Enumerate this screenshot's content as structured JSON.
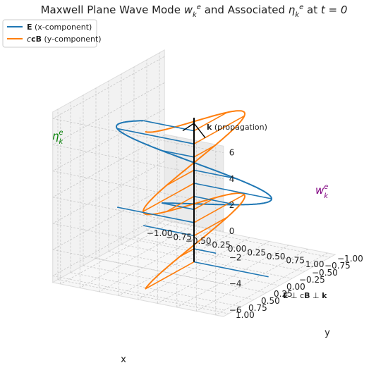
{
  "chart_data": {
    "type": "line",
    "title": "Maxwell Plane Wave Mode w_k^e and Associated η_k^e at t = 0",
    "title_parts": {
      "prefix": "Maxwell Plane Wave Mode ",
      "w": "w",
      "mid": " and Associated ",
      "eta": "η",
      "sub": "k",
      "sup": "e",
      "at": " at ",
      "t_eq": "t = 0"
    },
    "legend": {
      "placement": "top-left",
      "entries": [
        {
          "bold": "E",
          "rest": " (x-component)",
          "color": "#1f77b4"
        },
        {
          "bold": "cB",
          "rest": " (y-component)",
          "color": "#ff7f0e"
        }
      ]
    },
    "axes": {
      "x": {
        "label": "x",
        "range": [
          -1.1,
          1.1
        ],
        "ticks": [
          "−1.00",
          "−0.75",
          "−0.50",
          "−0.25",
          "0.00",
          "0.25",
          "0.50",
          "0.75",
          "1.00"
        ],
        "tick_values": [
          -1,
          -0.75,
          -0.5,
          -0.25,
          0,
          0.25,
          0.5,
          0.75,
          1
        ]
      },
      "y": {
        "label": "y",
        "range": [
          -1.1,
          1.1
        ],
        "ticks": [
          "−1.00",
          "−0.75",
          "−0.50",
          "−0.25",
          "0.00",
          "0.25",
          "0.50",
          "0.75",
          "1.00"
        ],
        "tick_values": [
          -1,
          -0.75,
          -0.5,
          -0.25,
          0,
          0.25,
          0.5,
          0.75,
          1
        ]
      },
      "z": {
        "label": "",
        "range": [
          -6.5,
          6.5
        ],
        "ticks": [
          "−6",
          "−4",
          "−2",
          "0",
          "2",
          "4",
          "6"
        ],
        "tick_values": [
          -6,
          -4,
          -2,
          0,
          2,
          4,
          6
        ]
      }
    },
    "grid": true,
    "series": [
      {
        "name": "E (x-component)",
        "color": "#1f77b4",
        "component": "x",
        "amplitude": 1.0,
        "z_range": [
          -2,
          4
        ],
        "function": "x = cos(z)"
      },
      {
        "name": "cB (y-component)",
        "color": "#ff7f0e",
        "component": "y",
        "amplitude": 1.0,
        "z_range": [
          -6,
          6
        ],
        "function": "y = cos(z)"
      }
    ],
    "field_samples_z": [
      -6,
      -5,
      -4,
      -3,
      -2,
      -1,
      0,
      1,
      2,
      3,
      4
    ],
    "propagation_axis": {
      "z_range": [
        -6,
        5
      ],
      "label_bold": "k",
      "label_rest": " (propagation)"
    },
    "annotations": {
      "eta": {
        "base": "η",
        "sub": "k",
        "sup": "e",
        "color": "#008000"
      },
      "w": {
        "base": "w",
        "sub": "k",
        "sup": "e",
        "color": "#800080"
      },
      "orthogonality": {
        "E": "E",
        "perp1": " ⊥ c",
        "B": "B",
        "perp2": " ⊥ ",
        "k": "k"
      }
    }
  }
}
